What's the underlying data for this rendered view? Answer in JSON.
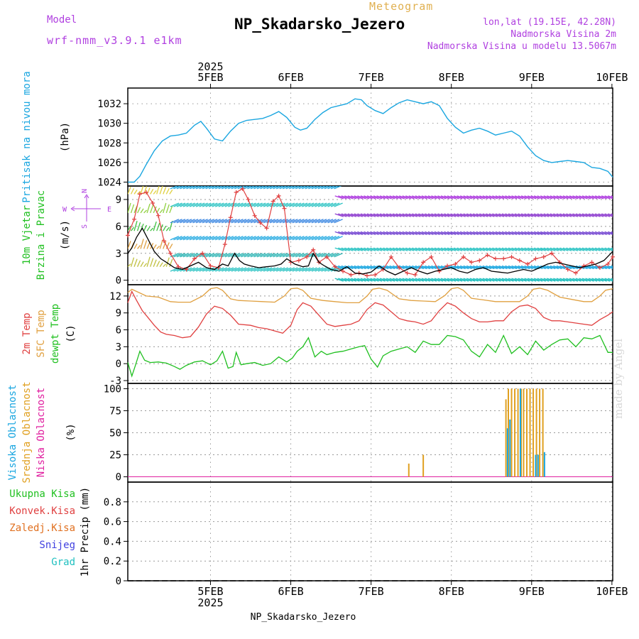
{
  "header": {
    "model_label": "Model",
    "model_value": "wrf-nmm_v3.9.1 e1km",
    "meteogram_label": "Meteogram",
    "title": "NP_Skadarsko_Jezero",
    "coords": "lon,lat (19.15E, 42.28N)",
    "altitude": "Nadmorska Visina 2m",
    "model_altitude": "Nadmorska Visina u modelu 13.5067m"
  },
  "footer": {
    "station": "NP_Skadarsko_Jezero"
  },
  "credit": "made by Angel",
  "colors": {
    "pressure": "#1aa6e0",
    "wind_speed": "#000000",
    "gust": "#e04040",
    "temp2m": "#e04040",
    "sfc_temp": "#e0a040",
    "dewpt": "#20c020",
    "cloud_high": "#1aa6e0",
    "cloud_mid": "#e0a020",
    "cloud_low": "#e020a0",
    "precip_total": "#20c020",
    "precip_conv": "#e04040",
    "precip_frozen": "#e07020",
    "snow": "#4040e0",
    "graupel": "#20c0c0",
    "purple": "#b040e0"
  },
  "chart_data": [
    {
      "type": "line",
      "panel": "pressure",
      "ylabel_name": "Pritisak na nivou mora",
      "ylabel_unit": "(hPa)",
      "ylim": [
        1023.6,
        1033.6
      ],
      "yticks": [
        "1024",
        "1026",
        "1028",
        "1030",
        "1032"
      ],
      "x_start": 4.47,
      "x_end": 10.51,
      "series": [
        {
          "x": [
            4.47,
            4.55,
            4.62,
            4.7,
            4.8,
            4.9,
            5.0,
            5.1,
            5.2,
            5.3,
            5.38,
            5.45,
            5.55,
            5.65,
            5.75,
            5.85,
            5.95,
            6.05,
            6.15,
            6.25,
            6.35,
            6.45,
            6.55,
            6.62,
            6.7,
            6.8,
            6.9,
            7.0,
            7.1,
            7.2,
            7.3,
            7.38,
            7.45,
            7.55,
            7.65,
            7.75,
            7.85,
            7.95,
            8.05,
            8.15,
            8.25,
            8.35,
            8.45,
            8.55,
            8.65,
            8.75,
            8.85,
            8.95,
            9.05,
            9.15,
            9.25,
            9.35,
            9.45,
            9.55,
            9.65,
            9.75,
            9.85,
            9.95,
            10.05,
            10.15,
            10.25,
            10.35,
            10.45,
            10.51
          ],
          "y": [
            1024.0,
            1024.0,
            1024.6,
            1025.8,
            1027.2,
            1028.2,
            1028.7,
            1028.8,
            1029.0,
            1029.8,
            1030.2,
            1029.5,
            1028.4,
            1028.2,
            1029.2,
            1030.0,
            1030.3,
            1030.4,
            1030.5,
            1030.8,
            1031.2,
            1030.6,
            1029.6,
            1029.3,
            1029.5,
            1030.4,
            1031.1,
            1031.6,
            1031.8,
            1032.0,
            1032.5,
            1032.4,
            1031.8,
            1031.3,
            1031.0,
            1031.6,
            1032.1,
            1032.4,
            1032.2,
            1032.0,
            1032.2,
            1031.8,
            1030.5,
            1029.6,
            1029.0,
            1029.3,
            1029.5,
            1029.2,
            1028.8,
            1029.0,
            1029.2,
            1028.7,
            1027.6,
            1026.7,
            1026.2,
            1026.0,
            1026.1,
            1026.2,
            1026.1,
            1026.0,
            1025.5,
            1025.4,
            1025.1,
            1024.5
          ]
        }
      ]
    },
    {
      "type": "line",
      "panel": "wind",
      "ylabel_name": "10m Vjetar",
      "ylabel_name2": "Brzina i Pravac",
      "ylabel_unit": "(m/s)",
      "compass": {
        "n": "N",
        "s": "S",
        "e": "E",
        "w": "W"
      },
      "ylim": [
        -0.5,
        10.5
      ],
      "yticks": [
        "0",
        "3",
        "6",
        "9"
      ],
      "x_start": 4.47,
      "x_end": 10.51,
      "series": [
        {
          "name": "speed",
          "x": [
            4.47,
            4.52,
            4.58,
            4.65,
            4.72,
            4.8,
            4.88,
            4.95,
            5.05,
            5.15,
            5.25,
            5.35,
            5.45,
            5.55,
            5.65,
            5.72,
            5.8,
            5.86,
            5.92,
            6.0,
            6.1,
            6.2,
            6.3,
            6.38,
            6.45,
            6.55,
            6.65,
            6.72,
            6.78,
            6.85,
            6.92,
            7.0,
            7.1,
            7.2,
            7.3,
            7.4,
            7.5,
            7.6,
            7.7,
            7.8,
            7.9,
            8.0,
            8.1,
            8.2,
            8.3,
            8.4,
            8.5,
            8.6,
            8.7,
            8.8,
            8.9,
            9.0,
            9.1,
            9.2,
            9.3,
            9.4,
            9.5,
            9.6,
            9.7,
            9.8,
            9.9,
            10.0,
            10.1,
            10.2,
            10.3,
            10.4,
            10.51
          ],
          "y": [
            3.0,
            3.6,
            4.8,
            5.8,
            4.6,
            3.2,
            2.4,
            2.0,
            1.4,
            1.2,
            1.6,
            2.0,
            1.4,
            1.2,
            1.8,
            1.6,
            3.0,
            2.2,
            1.8,
            1.6,
            1.4,
            1.5,
            1.6,
            1.8,
            2.4,
            1.8,
            1.5,
            1.6,
            3.0,
            2.0,
            1.6,
            1.2,
            1.0,
            1.5,
            0.8,
            0.7,
            0.9,
            1.6,
            1.0,
            0.6,
            1.0,
            1.4,
            1.0,
            0.7,
            1.0,
            1.2,
            1.4,
            1.0,
            0.8,
            1.2,
            1.4,
            1.0,
            0.9,
            0.8,
            1.0,
            1.2,
            1.0,
            1.4,
            1.8,
            2.0,
            1.8,
            1.6,
            1.4,
            1.6,
            1.8,
            2.2,
            3.2
          ]
        },
        {
          "name": "gust",
          "x": [
            4.47,
            4.55,
            4.62,
            4.7,
            4.78,
            4.85,
            4.92,
            5.0,
            5.1,
            5.2,
            5.3,
            5.4,
            5.5,
            5.6,
            5.68,
            5.75,
            5.82,
            5.9,
            5.97,
            6.05,
            6.12,
            6.2,
            6.28,
            6.35,
            6.42,
            6.5,
            6.6,
            6.7,
            6.78,
            6.85,
            6.95,
            7.05,
            7.15,
            7.25,
            7.35,
            7.45,
            7.55,
            7.65,
            7.75,
            7.85,
            7.95,
            8.05,
            8.15,
            8.25,
            8.35,
            8.45,
            8.55,
            8.65,
            8.75,
            8.85,
            8.95,
            9.05,
            9.15,
            9.25,
            9.35,
            9.45,
            9.55,
            9.65,
            9.75,
            9.85,
            9.95,
            10.05,
            10.15,
            10.25,
            10.35,
            10.45,
            10.51
          ],
          "y": [
            5.0,
            6.8,
            9.6,
            9.8,
            8.6,
            7.2,
            4.4,
            3.0,
            1.5,
            1.2,
            2.4,
            3.0,
            1.6,
            1.4,
            4.0,
            7.0,
            9.8,
            10.2,
            9.0,
            7.2,
            6.4,
            5.8,
            8.8,
            9.4,
            8.0,
            2.0,
            2.2,
            2.6,
            3.4,
            2.0,
            2.6,
            1.5,
            1.0,
            0.6,
            0.8,
            0.5,
            0.6,
            1.2,
            2.6,
            1.4,
            0.8,
            0.6,
            2.0,
            2.6,
            1.0,
            1.6,
            1.8,
            2.6,
            2.0,
            2.2,
            2.8,
            2.4,
            2.4,
            2.6,
            2.2,
            1.8,
            2.4,
            2.6,
            3.0,
            2.0,
            1.2,
            0.8,
            1.6,
            2.0,
            1.4,
            1.8,
            2.6
          ]
        }
      ],
      "barbs": [
        {
          "x_from": 4.47,
          "x_to": 5.0,
          "y": [
            9.6,
            7.5,
            5.5,
            3.5,
            1.5
          ],
          "dir": "mixed",
          "color": [
            "#e0d040",
            "#90d040",
            "#40c040",
            "#e0a040",
            "#c0c040"
          ]
        },
        {
          "x_from": 5.0,
          "x_to": 7.05,
          "y": [
            10.2,
            8.2,
            6.4,
            4.5,
            2.6,
            1.0
          ],
          "dir": "sw",
          "color": [
            "#1aa6e0",
            "#20c0c0",
            "#3080e0",
            "#1aa6e0",
            "#20b0b0",
            "#20c0c0"
          ]
        },
        {
          "x_from": 7.05,
          "x_to": 10.51,
          "y": [
            9.4,
            7.4,
            5.4,
            3.6,
            1.6,
            0.2
          ],
          "dir": "nw",
          "color": [
            "#b040e0",
            "#9040d0",
            "#7040d0",
            "#20c0c0",
            "#1aa6e0",
            "#20c0c0"
          ]
        }
      ]
    },
    {
      "type": "line",
      "panel": "temperature",
      "ylabel_names": [
        "2m Temp",
        "SFC Temp",
        "dewpt Temp"
      ],
      "ylabel_unit": "(C)",
      "ylim": [
        -3.5,
        14.0
      ],
      "yticks": [
        "-3",
        "0",
        "3",
        "6",
        "9",
        "12"
      ],
      "x_start": 4.47,
      "x_end": 10.51,
      "series": [
        {
          "name": "SFC Temp",
          "x": [
            4.47,
            4.52,
            4.58,
            4.7,
            4.85,
            5.0,
            5.1,
            5.25,
            5.4,
            5.5,
            5.58,
            5.65,
            5.75,
            5.85,
            6.0,
            6.15,
            6.3,
            6.42,
            6.5,
            6.58,
            6.65,
            6.75,
            6.9,
            7.05,
            7.2,
            7.35,
            7.45,
            7.52,
            7.6,
            7.7,
            7.85,
            8.0,
            8.15,
            8.3,
            8.42,
            8.5,
            8.58,
            8.65,
            8.75,
            8.9,
            9.05,
            9.2,
            9.35,
            9.45,
            9.52,
            9.6,
            9.7,
            9.85,
            10.0,
            10.15,
            10.25,
            10.35,
            10.42,
            10.51
          ],
          "y": [
            12.6,
            13.2,
            12.8,
            12.0,
            11.8,
            11.0,
            10.9,
            10.9,
            12.0,
            13.3,
            13.5,
            13.0,
            11.5,
            11.2,
            11.1,
            11.0,
            10.9,
            12.0,
            13.3,
            13.4,
            13.0,
            11.6,
            11.2,
            11.0,
            10.8,
            10.8,
            12.0,
            13.2,
            13.4,
            13.0,
            11.5,
            11.2,
            11.1,
            11.0,
            12.1,
            13.3,
            13.5,
            13.0,
            11.6,
            11.3,
            11.0,
            11.0,
            11.0,
            12.0,
            13.2,
            13.4,
            13.0,
            11.8,
            11.4,
            11.0,
            11.0,
            12.0,
            13.0,
            13.3
          ]
        },
        {
          "name": "2m Temp",
          "x": [
            4.47,
            4.52,
            4.58,
            4.65,
            4.72,
            4.8,
            4.88,
            4.95,
            5.05,
            5.15,
            5.25,
            5.35,
            5.45,
            5.55,
            5.65,
            5.75,
            5.85,
            6.0,
            6.1,
            6.2,
            6.3,
            6.4,
            6.5,
            6.58,
            6.65,
            6.75,
            6.85,
            6.95,
            7.05,
            7.15,
            7.25,
            7.35,
            7.45,
            7.55,
            7.65,
            7.75,
            7.85,
            7.95,
            8.05,
            8.15,
            8.25,
            8.35,
            8.45,
            8.55,
            8.65,
            8.75,
            8.85,
            8.95,
            9.05,
            9.15,
            9.25,
            9.35,
            9.45,
            9.55,
            9.65,
            9.75,
            9.85,
            9.95,
            10.05,
            10.15,
            10.25,
            10.35,
            10.45,
            10.51
          ],
          "y": [
            10.8,
            12.8,
            11.2,
            9.4,
            8.2,
            6.8,
            5.6,
            5.2,
            5.0,
            4.6,
            4.8,
            6.5,
            8.8,
            10.2,
            9.8,
            8.6,
            7.0,
            6.8,
            6.4,
            6.2,
            5.8,
            5.4,
            6.8,
            9.6,
            10.8,
            10.2,
            8.6,
            7.0,
            6.6,
            6.8,
            7.0,
            7.6,
            9.6,
            10.8,
            10.4,
            9.2,
            8.0,
            7.6,
            7.4,
            7.0,
            7.6,
            9.4,
            10.8,
            10.2,
            9.0,
            8.0,
            7.4,
            7.4,
            7.6,
            7.6,
            9.2,
            10.2,
            10.4,
            9.8,
            8.2,
            7.6,
            7.6,
            7.4,
            7.2,
            7.0,
            6.8,
            7.8,
            8.6,
            9.2
          ]
        },
        {
          "name": "dewpt Temp",
          "x": [
            4.47,
            4.52,
            4.56,
            4.62,
            4.68,
            4.75,
            4.85,
            4.95,
            5.05,
            5.12,
            5.2,
            5.3,
            5.4,
            5.5,
            5.58,
            5.65,
            5.72,
            5.78,
            5.82,
            5.88,
            5.95,
            6.05,
            6.15,
            6.25,
            6.35,
            6.45,
            6.52,
            6.58,
            6.65,
            6.72,
            6.8,
            6.88,
            6.95,
            7.05,
            7.15,
            7.25,
            7.35,
            7.42,
            7.5,
            7.58,
            7.65,
            7.75,
            7.85,
            7.95,
            8.05,
            8.15,
            8.25,
            8.35,
            8.45,
            8.55,
            8.65,
            8.75,
            8.85,
            8.95,
            9.05,
            9.15,
            9.25,
            9.35,
            9.45,
            9.55,
            9.65,
            9.75,
            9.85,
            9.95,
            10.05,
            10.15,
            10.25,
            10.35,
            10.45,
            10.51
          ],
          "y": [
            0.2,
            -2.2,
            -0.5,
            2.2,
            0.6,
            0.2,
            0.3,
            0.1,
            -0.5,
            -1.0,
            -0.3,
            0.3,
            0.5,
            -0.2,
            0.5,
            2.2,
            -0.8,
            -0.5,
            2.0,
            -0.2,
            0.0,
            0.2,
            -0.3,
            0.0,
            1.2,
            0.3,
            1.0,
            2.2,
            3.0,
            4.6,
            1.2,
            2.2,
            1.6,
            2.0,
            2.2,
            2.6,
            3.0,
            3.2,
            0.8,
            -0.6,
            1.4,
            2.2,
            2.6,
            3.0,
            2.0,
            4.0,
            3.4,
            3.4,
            5.0,
            4.8,
            4.2,
            2.2,
            1.2,
            3.4,
            2.0,
            5.0,
            1.8,
            3.0,
            1.6,
            4.0,
            2.4,
            3.4,
            4.2,
            4.4,
            3.0,
            4.6,
            4.4,
            5.0,
            2.0,
            2.0
          ]
        }
      ]
    },
    {
      "type": "bar",
      "panel": "clouds",
      "ylabel_names": [
        "Visoka Oblacnost",
        "Srednja Oblacnost",
        "Niska Oblacnost"
      ],
      "ylabel_unit": "(%)",
      "ylim": [
        -6,
        106
      ],
      "yticks": [
        "0",
        "25",
        "50",
        "75",
        "100"
      ],
      "x_start": 4.47,
      "x_end": 10.51,
      "series": [
        {
          "name": "Srednja Oblacnost",
          "x": [
            7.97,
            8.15,
            9.18,
            9.21,
            9.25,
            9.29,
            9.33,
            9.37,
            9.4,
            9.44,
            9.48,
            9.52,
            9.56,
            9.6,
            9.64
          ],
          "values": [
            15,
            25,
            88,
            100,
            100,
            100,
            100,
            100,
            100,
            100,
            100,
            100,
            100,
            100,
            100
          ]
        },
        {
          "name": "Visoka Oblacnost",
          "x": [
            9.2,
            9.23,
            9.36,
            9.55,
            9.58,
            9.66
          ],
          "values": [
            55,
            65,
            100,
            25,
            25,
            28
          ]
        }
      ]
    },
    {
      "type": "line",
      "panel": "precipitation",
      "ylabel_names": [
        "Ukupna Kisa",
        "Konvek.Kisa",
        "Zaledj.Kisa",
        "Snijeg",
        "Grad"
      ],
      "ylabel_unit": "1hr Precip (mm)",
      "ylim": [
        0,
        1.0
      ],
      "yticks": [
        "0",
        "0.2",
        "0.4",
        "0.6",
        "0.8"
      ],
      "x_start": 4.47,
      "x_end": 10.51,
      "x_dates": [
        "5FEB",
        "6FEB",
        "7FEB",
        "8FEB",
        "9FEB",
        "10FEB"
      ],
      "x_year": "2025",
      "series": []
    }
  ]
}
